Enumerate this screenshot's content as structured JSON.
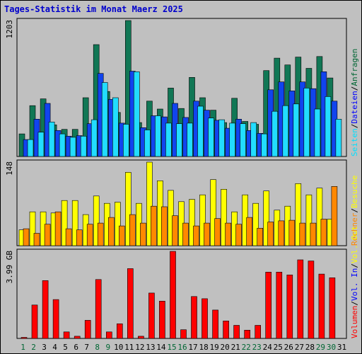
{
  "title": "Tages-Statistik im Monat Maerz 2025",
  "chart_data": [
    {
      "type": "bar",
      "panel": "top",
      "max_label": "1203",
      "ymax": 1203,
      "right_legend": [
        {
          "text": "Seiten",
          "color": "#00e0ff"
        },
        {
          "text": "/",
          "color": "#000000"
        },
        {
          "text": "Dateien",
          "color": "#0000ff"
        },
        {
          "text": "/",
          "color": "#000000"
        },
        {
          "text": "Anfragen",
          "color": "#006633"
        }
      ],
      "series": [
        {
          "name": "Anfragen",
          "color": "#117755",
          "values": [
            200,
            450,
            510,
            280,
            240,
            240,
            520,
            990,
            575,
            390,
            1203,
            300,
            490,
            420,
            605,
            425,
            700,
            520,
            410,
            300,
            515,
            310,
            285,
            760,
            870,
            810,
            880,
            780,
            885,
            695,
            0
          ]
        },
        {
          "name": "Dateien",
          "color": "#1144ee",
          "values": [
            150,
            330,
            470,
            230,
            180,
            185,
            290,
            735,
            505,
            295,
            755,
            255,
            360,
            350,
            470,
            345,
            490,
            410,
            320,
            250,
            330,
            230,
            205,
            590,
            660,
            580,
            660,
            600,
            750,
            490,
            0
          ]
        },
        {
          "name": "Seiten",
          "color": "#22ddff",
          "values": [
            150,
            215,
            305,
            200,
            170,
            180,
            325,
            655,
            520,
            285,
            750,
            235,
            360,
            295,
            290,
            295,
            445,
            340,
            325,
            295,
            290,
            300,
            200,
            400,
            450,
            465,
            605,
            420,
            530,
            330,
            0
          ]
        }
      ],
      "categories": [
        "1",
        "2",
        "3",
        "4",
        "5",
        "6",
        "7",
        "8",
        "9",
        "10",
        "11",
        "12",
        "13",
        "14",
        "15",
        "16",
        "17",
        "18",
        "19",
        "20",
        "21",
        "22",
        "23",
        "24",
        "25",
        "26",
        "27",
        "28",
        "29",
        "30",
        "31"
      ]
    },
    {
      "type": "bar",
      "panel": "middle",
      "max_label": "148",
      "ymax": 148,
      "right_legend": [
        {
          "text": "Rechner",
          "color": "#ff8800"
        },
        {
          "text": "/",
          "color": "#000000"
        },
        {
          "text": "Besuche",
          "color": "#ffff00"
        }
      ],
      "series": [
        {
          "name": "Besuche",
          "color": "#ffff00",
          "values": [
            28,
            60,
            60,
            58,
            80,
            80,
            55,
            88,
            75,
            77,
            130,
            75,
            148,
            115,
            98,
            78,
            82,
            90,
            117,
            100,
            60,
            90,
            75,
            97,
            63,
            70,
            110,
            90,
            102,
            47,
            0
          ]
        },
        {
          "name": "Rechner",
          "color": "#ff8800",
          "values": [
            30,
            22,
            38,
            60,
            30,
            28,
            38,
            40,
            50,
            35,
            55,
            40,
            70,
            69,
            53,
            40,
            35,
            40,
            48,
            40,
            38,
            50,
            31,
            42,
            44,
            45,
            40,
            40,
            47,
            105,
            0
          ]
        }
      ]
    },
    {
      "type": "bar",
      "panel": "bottom",
      "max_label": "3.99 GB",
      "ymax": 3.99,
      "right_legend": [
        {
          "text": "Volumen",
          "color": "#ff0000"
        },
        {
          "text": "/",
          "color": "#000000"
        },
        {
          "text": "Vol. In",
          "color": "#0000ff"
        },
        {
          "text": "/",
          "color": "#000000"
        },
        {
          "text": "Vol. Out",
          "color": "#ffff00"
        }
      ],
      "series": [
        {
          "name": "Volumen",
          "color": "#ff0000",
          "values": [
            0.05,
            1.53,
            2.65,
            1.78,
            0.3,
            0.1,
            0.83,
            2.7,
            0.3,
            0.67,
            3.2,
            0.1,
            2.08,
            1.71,
            3.99,
            0.4,
            1.92,
            1.82,
            1.3,
            0.8,
            0.6,
            0.38,
            0.6,
            3.04,
            3.04,
            2.91,
            3.6,
            3.55,
            2.95,
            2.78,
            0
          ]
        }
      ]
    }
  ],
  "day_labels": [
    {
      "text": "1",
      "color": "#006633"
    },
    {
      "text": "2",
      "color": "#006633"
    },
    {
      "text": "3",
      "color": "#000000"
    },
    {
      "text": "4",
      "color": "#000000"
    },
    {
      "text": "5",
      "color": "#000000"
    },
    {
      "text": "6",
      "color": "#000000"
    },
    {
      "text": "7",
      "color": "#000000"
    },
    {
      "text": "8",
      "color": "#006633"
    },
    {
      "text": "9",
      "color": "#006633"
    },
    {
      "text": "10",
      "color": "#000000"
    },
    {
      "text": "11",
      "color": "#000000"
    },
    {
      "text": "12",
      "color": "#000000"
    },
    {
      "text": "13",
      "color": "#000000"
    },
    {
      "text": "14",
      "color": "#000000"
    },
    {
      "text": "15",
      "color": "#006633"
    },
    {
      "text": "16",
      "color": "#006633"
    },
    {
      "text": "17",
      "color": "#000000"
    },
    {
      "text": "18",
      "color": "#000000"
    },
    {
      "text": "19",
      "color": "#000000"
    },
    {
      "text": "20",
      "color": "#000000"
    },
    {
      "text": "21",
      "color": "#000000"
    },
    {
      "text": "22",
      "color": "#006633"
    },
    {
      "text": "23",
      "color": "#006633"
    },
    {
      "text": "24",
      "color": "#000000"
    },
    {
      "text": "25",
      "color": "#000000"
    },
    {
      "text": "26",
      "color": "#000000"
    },
    {
      "text": "27",
      "color": "#000000"
    },
    {
      "text": "28",
      "color": "#000000"
    },
    {
      "text": "29",
      "color": "#006633"
    },
    {
      "text": "30",
      "color": "#006633"
    },
    {
      "text": "31",
      "color": "#000000"
    }
  ]
}
